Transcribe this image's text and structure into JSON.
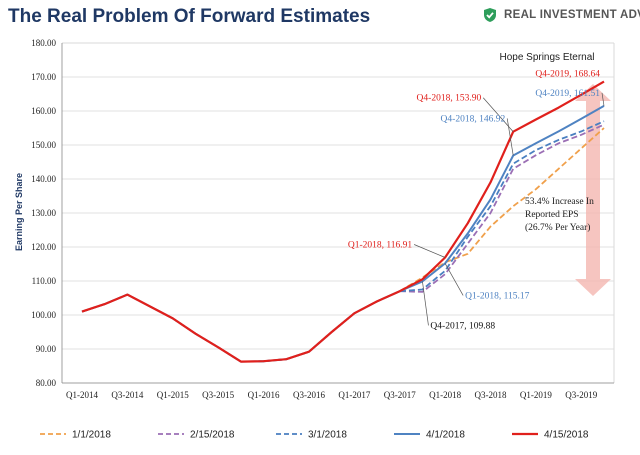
{
  "header": {
    "title": "The Real Problem Of Forward Estimates",
    "brand": "REAL INVESTMENT ADVICE",
    "brand_icon": "shield-checkmark-icon",
    "brand_color": "#2e9e5b"
  },
  "chart_data": {
    "type": "line",
    "subtitle": "Hope Springs Eternal",
    "ylabel": "Earning Per Share",
    "xlabel": "",
    "ylim": [
      80,
      180
    ],
    "yticks": [
      "80.00",
      "90.00",
      "100.00",
      "110.00",
      "120.00",
      "130.00",
      "140.00",
      "150.00",
      "160.00",
      "170.00",
      "180.00"
    ],
    "x": [
      "Q1-2014",
      "Q2-2014",
      "Q3-2014",
      "Q4-2014",
      "Q1-2015",
      "Q2-2015",
      "Q3-2015",
      "Q4-2015",
      "Q1-2016",
      "Q2-2016",
      "Q3-2016",
      "Q4-2016",
      "Q1-2017",
      "Q2-2017",
      "Q3-2017",
      "Q4-2017",
      "Q1-2018",
      "Q2-2018",
      "Q3-2018",
      "Q4-2018",
      "Q1-2019",
      "Q2-2019",
      "Q3-2019",
      "Q4-2019"
    ],
    "xtick_labels": [
      "Q1-2014",
      "Q3-2014",
      "Q1-2015",
      "Q3-2015",
      "Q1-2016",
      "Q3-2016",
      "Q1-2017",
      "Q3-2017",
      "Q1-2018",
      "Q3-2018",
      "Q1-2019",
      "Q3-2019"
    ],
    "grid": "horizontal",
    "legend_position": "bottom",
    "series": [
      {
        "name": "1/1/2018",
        "color": "#f0a04b",
        "dash": "dashed",
        "width": 1.8,
        "values": [
          101.0,
          103.2,
          106.0,
          102.5,
          99.0,
          94.5,
          90.5,
          86.3,
          86.4,
          87.0,
          89.2,
          95.0,
          100.5,
          104.0,
          107.0,
          111.0,
          115.5,
          118.0,
          126.0,
          132.0,
          137.0,
          143.0,
          149.0,
          155.0
        ]
      },
      {
        "name": "2/15/2018",
        "color": "#9b6fb5",
        "dash": "dashed",
        "width": 1.8,
        "values": [
          101.0,
          103.2,
          106.0,
          102.5,
          99.0,
          94.5,
          90.5,
          86.3,
          86.4,
          87.0,
          89.2,
          95.0,
          100.5,
          104.0,
          107.0,
          106.8,
          112.0,
          121.0,
          130.0,
          143.0,
          147.0,
          150.5,
          153.0,
          156.0
        ]
      },
      {
        "name": "3/1/2018",
        "color": "#4a7fc0",
        "dash": "dashed",
        "width": 1.8,
        "values": [
          101.0,
          103.2,
          106.0,
          102.5,
          99.0,
          94.5,
          90.5,
          86.3,
          86.4,
          87.0,
          89.2,
          95.0,
          100.5,
          104.0,
          107.0,
          107.5,
          113.0,
          123.0,
          132.0,
          144.5,
          148.5,
          151.5,
          154.0,
          157.0
        ]
      },
      {
        "name": "4/1/2018",
        "color": "#4f83c2",
        "dash": "solid",
        "width": 2.0,
        "values": [
          101.0,
          103.2,
          106.0,
          102.5,
          99.0,
          94.5,
          90.5,
          86.3,
          86.4,
          87.0,
          89.2,
          95.0,
          100.5,
          104.0,
          107.0,
          109.88,
          115.17,
          124.0,
          134.0,
          146.92,
          150.5,
          154.0,
          157.7,
          161.51
        ]
      },
      {
        "name": "4/15/2018",
        "color": "#e0201c",
        "dash": "solid",
        "width": 2.2,
        "values": [
          101.0,
          103.2,
          106.0,
          102.5,
          99.0,
          94.5,
          90.5,
          86.3,
          86.4,
          87.0,
          89.2,
          95.0,
          100.5,
          104.0,
          107.0,
          110.5,
          116.91,
          127.0,
          139.0,
          153.9,
          157.5,
          161.0,
          164.8,
          168.64
        ]
      }
    ],
    "annotations": [
      {
        "text": "Q4-2019,  168.64",
        "color": "#e0201c",
        "x_index": 23,
        "y": 168.64
      },
      {
        "text": "Q4-2019,  161.51",
        "color": "#4f83c2",
        "x_index": 23,
        "y": 161.51
      },
      {
        "text": "Q4-2018,  153.90",
        "color": "#e0201c",
        "x_index": 19,
        "y": 153.9
      },
      {
        "text": "Q4-2018,  146.92",
        "color": "#4f83c2",
        "x_index": 19,
        "y": 146.92
      },
      {
        "text": "Q1-2018,  116.91",
        "color": "#e0201c",
        "x_index": 16,
        "y": 116.91
      },
      {
        "text": "Q1-2018,  115.17",
        "color": "#4f83c2",
        "x_index": 16,
        "y": 115.17
      },
      {
        "text": "Q4-2017,  109.88",
        "color": "#111111",
        "x_index": 15,
        "y": 109.88
      }
    ],
    "callout": [
      "53.4% Increase In",
      "Reported EPS",
      "(26.7% Per Year)"
    ],
    "callout_arrow_color": "#f4b6b0"
  }
}
